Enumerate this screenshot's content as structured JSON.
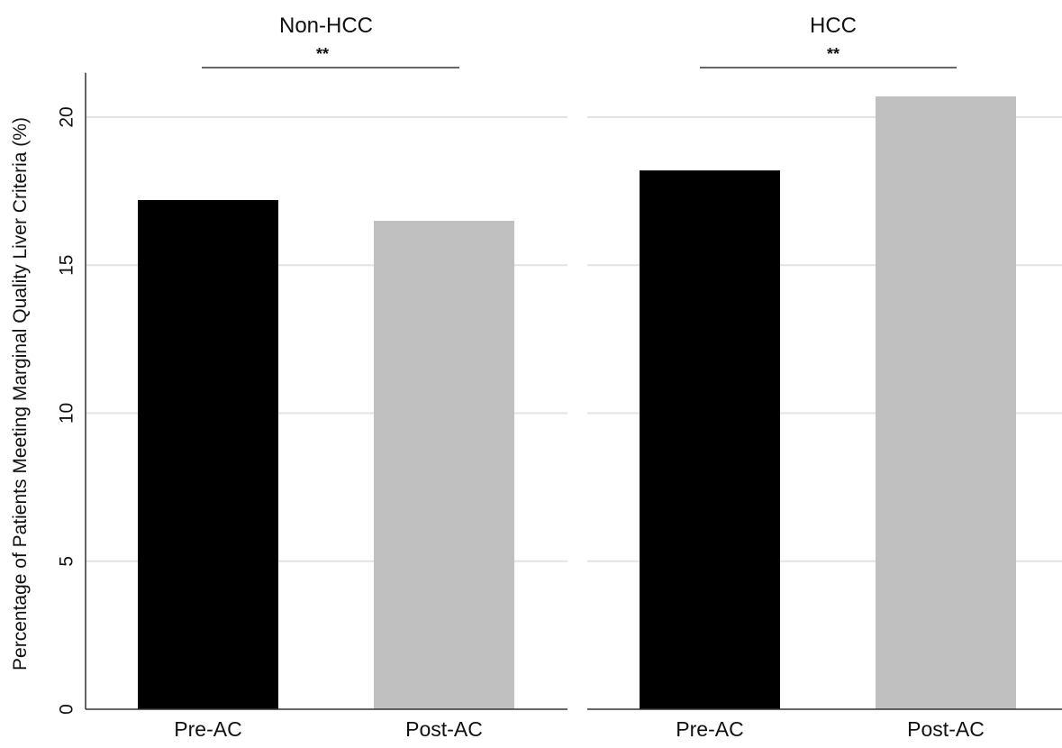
{
  "chart_data": {
    "type": "bar",
    "ylabel": "Percentage of Patients Meeting Marginal Quality Liver Criteria (%)",
    "ylim": [
      0,
      21.5
    ],
    "yticks": [
      0,
      5,
      10,
      15,
      20
    ],
    "grid": true,
    "panels": [
      {
        "title": "Non-HCC",
        "significance": "**",
        "categories": [
          "Pre-AC",
          "Post-AC"
        ],
        "values": [
          17.2,
          16.5
        ],
        "colors": [
          "#000000",
          "#c0c0c0"
        ]
      },
      {
        "title": "HCC",
        "significance": "**",
        "categories": [
          "Pre-AC",
          "Post-AC"
        ],
        "values": [
          18.2,
          20.7
        ],
        "colors": [
          "#000000",
          "#c0c0c0"
        ]
      }
    ]
  }
}
